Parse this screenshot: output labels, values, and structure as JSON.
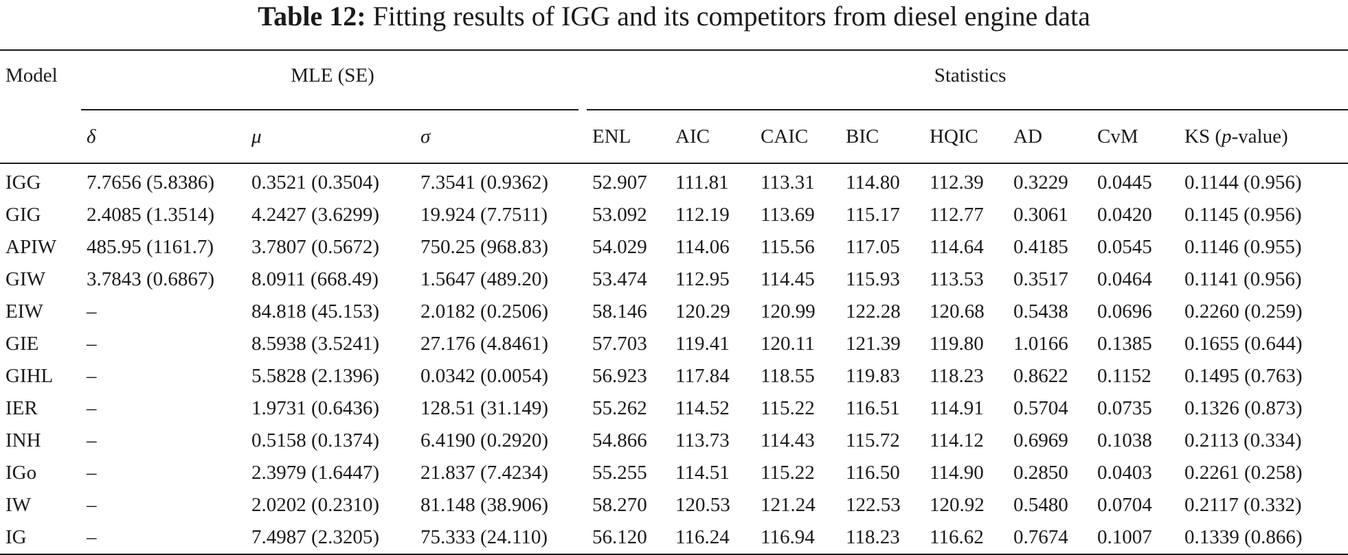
{
  "caption": {
    "label": "Table 12:",
    "text": "Fitting results of IGG and its competitors from diesel engine data"
  },
  "headers": {
    "model": "Model",
    "mle_group": "MLE (SE)",
    "stats_group": "Statistics",
    "delta": "δ",
    "mu": "μ",
    "sigma": "σ",
    "enl": "ENL",
    "aic": "AIC",
    "caic": "CAIC",
    "bic": "BIC",
    "hqic": "HQIC",
    "ad": "AD",
    "cvm": "CvM",
    "ks_prefix": "KS (",
    "ks_italic": "p",
    "ks_suffix": "-value)"
  },
  "rows": [
    {
      "model": "IGG",
      "delta": "7.7656 (5.8386)",
      "mu": "0.3521 (0.3504)",
      "sigma": "7.3541 (0.9362)",
      "enl": "52.907",
      "aic": "111.81",
      "caic": "113.31",
      "bic": "114.80",
      "hqic": "112.39",
      "ad": "0.3229",
      "cvm": "0.0445",
      "ks": "0.1144 (0.956)"
    },
    {
      "model": "GIG",
      "delta": "2.4085 (1.3514)",
      "mu": "4.2427 (3.6299)",
      "sigma": "19.924 (7.7511)",
      "enl": "53.092",
      "aic": "112.19",
      "caic": "113.69",
      "bic": "115.17",
      "hqic": "112.77",
      "ad": "0.3061",
      "cvm": "0.0420",
      "ks": "0.1145 (0.956)"
    },
    {
      "model": "APIW",
      "delta": "485.95 (1161.7)",
      "mu": "3.7807 (0.5672)",
      "sigma": "750.25 (968.83)",
      "enl": "54.029",
      "aic": "114.06",
      "caic": "115.56",
      "bic": "117.05",
      "hqic": "114.64",
      "ad": "0.4185",
      "cvm": "0.0545",
      "ks": "0.1146 (0.955)"
    },
    {
      "model": "GIW",
      "delta": "3.7843 (0.6867)",
      "mu": "8.0911 (668.49)",
      "sigma": "1.5647 (489.20)",
      "enl": "53.474",
      "aic": "112.95",
      "caic": "114.45",
      "bic": "115.93",
      "hqic": "113.53",
      "ad": "0.3517",
      "cvm": "0.0464",
      "ks": "0.1141 (0.956)"
    },
    {
      "model": "EIW",
      "delta": "–",
      "mu": "84.818 (45.153)",
      "sigma": "2.0182 (0.2506)",
      "enl": "58.146",
      "aic": "120.29",
      "caic": "120.99",
      "bic": "122.28",
      "hqic": "120.68",
      "ad": "0.5438",
      "cvm": "0.0696",
      "ks": "0.2260 (0.259)"
    },
    {
      "model": "GIE",
      "delta": "–",
      "mu": "8.5938 (3.5241)",
      "sigma": "27.176 (4.8461)",
      "enl": "57.703",
      "aic": "119.41",
      "caic": "120.11",
      "bic": "121.39",
      "hqic": "119.80",
      "ad": "1.0166",
      "cvm": "0.1385",
      "ks": "0.1655 (0.644)"
    },
    {
      "model": "GIHL",
      "delta": "–",
      "mu": "5.5828 (2.1396)",
      "sigma": "0.0342 (0.0054)",
      "enl": "56.923",
      "aic": "117.84",
      "caic": "118.55",
      "bic": "119.83",
      "hqic": "118.23",
      "ad": "0.8622",
      "cvm": "0.1152",
      "ks": "0.1495 (0.763)"
    },
    {
      "model": "IER",
      "delta": "–",
      "mu": "1.9731 (0.6436)",
      "sigma": "128.51 (31.149)",
      "enl": "55.262",
      "aic": "114.52",
      "caic": "115.22",
      "bic": "116.51",
      "hqic": "114.91",
      "ad": "0.5704",
      "cvm": "0.0735",
      "ks": "0.1326 (0.873)"
    },
    {
      "model": "INH",
      "delta": "–",
      "mu": "0.5158 (0.1374)",
      "sigma": "6.4190 (0.2920)",
      "enl": "54.866",
      "aic": "113.73",
      "caic": "114.43",
      "bic": "115.72",
      "hqic": "114.12",
      "ad": "0.6969",
      "cvm": "0.1038",
      "ks": "0.2113 (0.334)"
    },
    {
      "model": "IGo",
      "delta": "–",
      "mu": "2.3979 (1.6447)",
      "sigma": "21.837 (7.4234)",
      "enl": "55.255",
      "aic": "114.51",
      "caic": "115.22",
      "bic": "116.50",
      "hqic": "114.90",
      "ad": "0.2850",
      "cvm": "0.0403",
      "ks": "0.2261 (0.258)"
    },
    {
      "model": "IW",
      "delta": "–",
      "mu": "2.0202 (0.2310)",
      "sigma": "81.148 (38.906)",
      "enl": "58.270",
      "aic": "120.53",
      "caic": "121.24",
      "bic": "122.53",
      "hqic": "120.92",
      "ad": "0.5480",
      "cvm": "0.0704",
      "ks": "0.2117 (0.332)"
    },
    {
      "model": "IG",
      "delta": "–",
      "mu": "7.4987 (2.3205)",
      "sigma": "75.333 (24.110)",
      "enl": "56.120",
      "aic": "116.24",
      "caic": "116.94",
      "bic": "118.23",
      "hqic": "116.62",
      "ad": "0.7674",
      "cvm": "0.1007",
      "ks": "0.1339 (0.866)"
    }
  ]
}
